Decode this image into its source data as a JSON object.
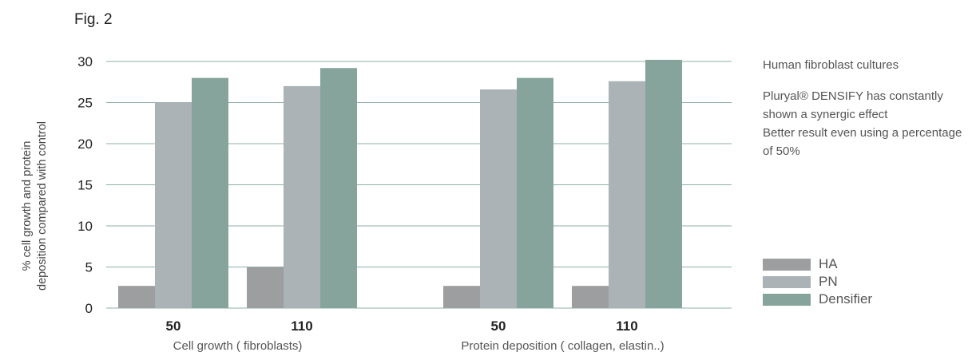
{
  "figure_label": "Fig. 2",
  "notes": {
    "heading": "Human fibroblast cultures",
    "lines": [
      "Pluryal® DENSIFY has constantly shown a synergic effect",
      "Better result even using a percentage of 50%"
    ]
  },
  "colors": {
    "HA": "#9c9e9f",
    "PN": "#abb3b6",
    "Densifier": "#86a49b",
    "grid": "#8fb0a8"
  },
  "chart_data": {
    "type": "bar",
    "title": "",
    "xlabel": "",
    "ylabel_lines": [
      "% cell growth and protein",
      "deposition compared with control"
    ],
    "ylim": [
      0,
      30
    ],
    "yticks": [
      0,
      5,
      10,
      15,
      20,
      25,
      30
    ],
    "grid": true,
    "legend_position": "right",
    "groups": [
      {
        "label": "Cell growth ( fibroblasts)",
        "categories": [
          "50",
          "110"
        ]
      },
      {
        "label": "Protein deposition ( collagen, elastin..)",
        "categories": [
          "50",
          "110"
        ]
      }
    ],
    "series": [
      {
        "name": "HA",
        "values": [
          2.7,
          5.0,
          2.7,
          2.7
        ]
      },
      {
        "name": "PN",
        "values": [
          25.0,
          27.0,
          26.6,
          27.6
        ]
      },
      {
        "name": "Densifier",
        "values": [
          28.0,
          29.2,
          28.0,
          30.2
        ]
      }
    ]
  }
}
